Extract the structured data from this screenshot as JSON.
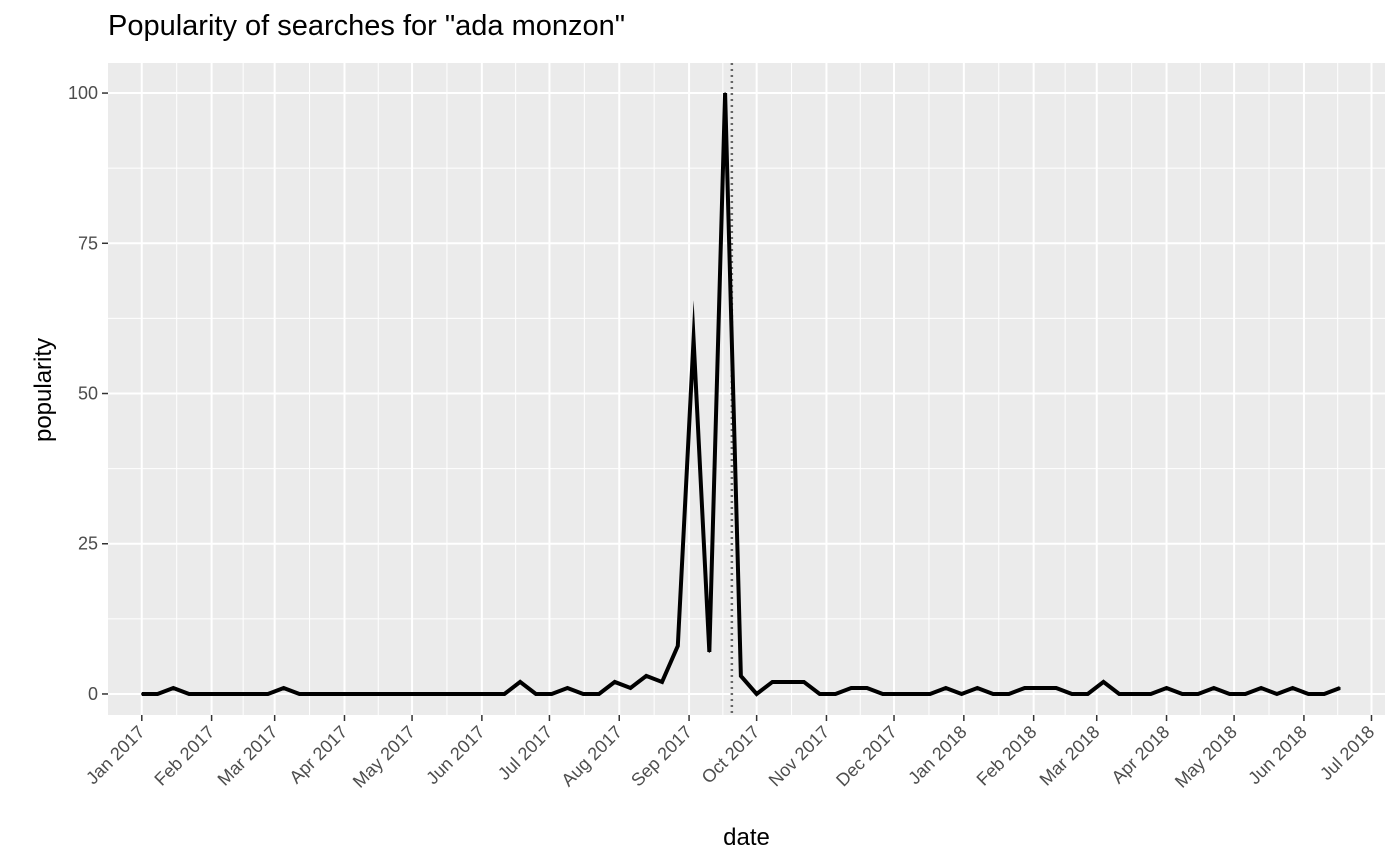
{
  "chart_data": {
    "type": "line",
    "title": "Popularity of searches for \"ada monzon\"",
    "xlabel": "date",
    "ylabel": "popularity",
    "ylim": [
      -3.5,
      105
    ],
    "xlim": [
      "2016-12-17",
      "2018-07-07"
    ],
    "grid": true,
    "background": "#ebebeb",
    "line_color": "#000000",
    "y_ticks": [
      0,
      25,
      50,
      75,
      100
    ],
    "x_ticks": [
      {
        "date": "2017-01-01",
        "label": "Jan 2017"
      },
      {
        "date": "2017-02-01",
        "label": "Feb 2017"
      },
      {
        "date": "2017-03-01",
        "label": "Mar 2017"
      },
      {
        "date": "2017-04-01",
        "label": "Apr 2017"
      },
      {
        "date": "2017-05-01",
        "label": "May 2017"
      },
      {
        "date": "2017-06-01",
        "label": "Jun 2017"
      },
      {
        "date": "2017-07-01",
        "label": "Jul 2017"
      },
      {
        "date": "2017-08-01",
        "label": "Aug 2017"
      },
      {
        "date": "2017-09-01",
        "label": "Sep 2017"
      },
      {
        "date": "2017-10-01",
        "label": "Oct 2017"
      },
      {
        "date": "2017-11-01",
        "label": "Nov 2017"
      },
      {
        "date": "2017-12-01",
        "label": "Dec 2017"
      },
      {
        "date": "2018-01-01",
        "label": "Jan 2018"
      },
      {
        "date": "2018-02-01",
        "label": "Feb 2018"
      },
      {
        "date": "2018-03-01",
        "label": "Mar 2018"
      },
      {
        "date": "2018-04-01",
        "label": "Apr 2018"
      },
      {
        "date": "2018-05-01",
        "label": "May 2018"
      },
      {
        "date": "2018-06-01",
        "label": "Jun 2018"
      },
      {
        "date": "2018-07-01",
        "label": "Jul 2018"
      }
    ],
    "vline": {
      "date": "2017-09-20",
      "style": "dotted",
      "color": "#666666"
    },
    "series": [
      {
        "start": "2017-01-01",
        "interval": "week",
        "x": [
          "2017-01-01",
          "2017-01-08",
          "2017-01-15",
          "2017-01-22",
          "2017-01-29",
          "2017-02-05",
          "2017-02-12",
          "2017-02-19",
          "2017-02-26",
          "2017-03-05",
          "2017-03-12",
          "2017-03-19",
          "2017-03-26",
          "2017-04-02",
          "2017-04-09",
          "2017-04-16",
          "2017-04-23",
          "2017-04-30",
          "2017-05-07",
          "2017-05-14",
          "2017-05-21",
          "2017-05-28",
          "2017-06-04",
          "2017-06-11",
          "2017-06-18",
          "2017-06-25",
          "2017-07-02",
          "2017-07-09",
          "2017-07-16",
          "2017-07-23",
          "2017-07-30",
          "2017-08-06",
          "2017-08-13",
          "2017-08-20",
          "2017-08-27",
          "2017-09-03",
          "2017-09-10",
          "2017-09-17",
          "2017-09-24",
          "2017-10-01",
          "2017-10-08",
          "2017-10-15",
          "2017-10-22",
          "2017-10-29",
          "2017-11-05",
          "2017-11-12",
          "2017-11-19",
          "2017-11-26",
          "2017-12-03",
          "2017-12-10",
          "2017-12-17",
          "2017-12-24",
          "2017-12-31",
          "2018-01-07",
          "2018-01-14",
          "2018-01-21",
          "2018-01-28",
          "2018-02-04",
          "2018-02-11",
          "2018-02-18",
          "2018-02-25",
          "2018-03-04",
          "2018-03-11",
          "2018-03-18",
          "2018-03-25",
          "2018-04-01",
          "2018-04-08",
          "2018-04-15",
          "2018-04-22",
          "2018-04-29",
          "2018-05-06",
          "2018-05-13",
          "2018-05-20",
          "2018-05-27",
          "2018-06-03",
          "2018-06-10",
          "2018-06-17"
        ],
        "values": [
          0,
          0,
          1,
          0,
          0,
          0,
          0,
          0,
          0,
          1,
          0,
          0,
          0,
          0,
          0,
          0,
          0,
          0,
          0,
          0,
          0,
          0,
          0,
          0,
          2,
          0,
          0,
          1,
          0,
          0,
          2,
          1,
          3,
          2,
          8,
          59,
          7,
          100,
          3,
          0,
          2,
          2,
          2,
          0,
          0,
          1,
          1,
          0,
          0,
          0,
          0,
          1,
          0,
          1,
          0,
          0,
          1,
          1,
          1,
          0,
          0,
          2,
          0,
          0,
          0,
          1,
          0,
          0,
          1,
          0,
          0,
          1,
          0,
          1,
          0,
          0,
          1
        ]
      }
    ]
  }
}
